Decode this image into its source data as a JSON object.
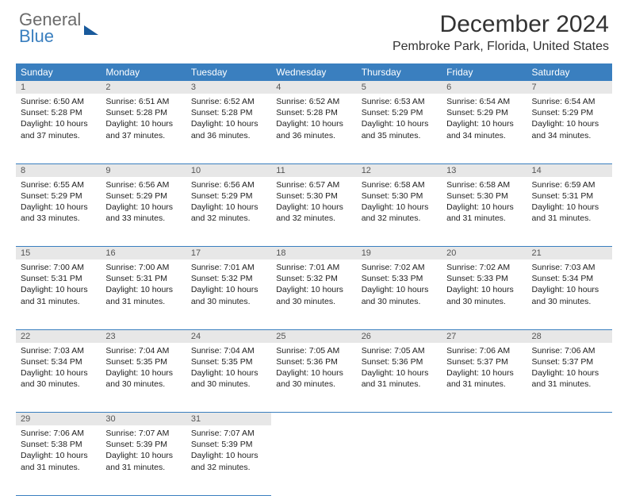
{
  "brand": {
    "line1": "General",
    "line2": "Blue"
  },
  "title": "December 2024",
  "location": "Pembroke Park, Florida, United States",
  "colors": {
    "header_bg": "#3a7fbf",
    "header_text": "#ffffff",
    "daynum_bg": "#e7e7e7",
    "cell_border": "#3a7fbf",
    "logo_gray": "#6b6b6b",
    "logo_blue": "#3a7fbf",
    "logo_mark": "#195a9c"
  },
  "weekdays": [
    "Sunday",
    "Monday",
    "Tuesday",
    "Wednesday",
    "Thursday",
    "Friday",
    "Saturday"
  ],
  "first_weekday_index": 0,
  "days": [
    {
      "n": 1,
      "sunrise": "6:50 AM",
      "sunset": "5:28 PM",
      "daylight": "10 hours and 37 minutes."
    },
    {
      "n": 2,
      "sunrise": "6:51 AM",
      "sunset": "5:28 PM",
      "daylight": "10 hours and 37 minutes."
    },
    {
      "n": 3,
      "sunrise": "6:52 AM",
      "sunset": "5:28 PM",
      "daylight": "10 hours and 36 minutes."
    },
    {
      "n": 4,
      "sunrise": "6:52 AM",
      "sunset": "5:28 PM",
      "daylight": "10 hours and 36 minutes."
    },
    {
      "n": 5,
      "sunrise": "6:53 AM",
      "sunset": "5:29 PM",
      "daylight": "10 hours and 35 minutes."
    },
    {
      "n": 6,
      "sunrise": "6:54 AM",
      "sunset": "5:29 PM",
      "daylight": "10 hours and 34 minutes."
    },
    {
      "n": 7,
      "sunrise": "6:54 AM",
      "sunset": "5:29 PM",
      "daylight": "10 hours and 34 minutes."
    },
    {
      "n": 8,
      "sunrise": "6:55 AM",
      "sunset": "5:29 PM",
      "daylight": "10 hours and 33 minutes."
    },
    {
      "n": 9,
      "sunrise": "6:56 AM",
      "sunset": "5:29 PM",
      "daylight": "10 hours and 33 minutes."
    },
    {
      "n": 10,
      "sunrise": "6:56 AM",
      "sunset": "5:29 PM",
      "daylight": "10 hours and 32 minutes."
    },
    {
      "n": 11,
      "sunrise": "6:57 AM",
      "sunset": "5:30 PM",
      "daylight": "10 hours and 32 minutes."
    },
    {
      "n": 12,
      "sunrise": "6:58 AM",
      "sunset": "5:30 PM",
      "daylight": "10 hours and 32 minutes."
    },
    {
      "n": 13,
      "sunrise": "6:58 AM",
      "sunset": "5:30 PM",
      "daylight": "10 hours and 31 minutes."
    },
    {
      "n": 14,
      "sunrise": "6:59 AM",
      "sunset": "5:31 PM",
      "daylight": "10 hours and 31 minutes."
    },
    {
      "n": 15,
      "sunrise": "7:00 AM",
      "sunset": "5:31 PM",
      "daylight": "10 hours and 31 minutes."
    },
    {
      "n": 16,
      "sunrise": "7:00 AM",
      "sunset": "5:31 PM",
      "daylight": "10 hours and 31 minutes."
    },
    {
      "n": 17,
      "sunrise": "7:01 AM",
      "sunset": "5:32 PM",
      "daylight": "10 hours and 30 minutes."
    },
    {
      "n": 18,
      "sunrise": "7:01 AM",
      "sunset": "5:32 PM",
      "daylight": "10 hours and 30 minutes."
    },
    {
      "n": 19,
      "sunrise": "7:02 AM",
      "sunset": "5:33 PM",
      "daylight": "10 hours and 30 minutes."
    },
    {
      "n": 20,
      "sunrise": "7:02 AM",
      "sunset": "5:33 PM",
      "daylight": "10 hours and 30 minutes."
    },
    {
      "n": 21,
      "sunrise": "7:03 AM",
      "sunset": "5:34 PM",
      "daylight": "10 hours and 30 minutes."
    },
    {
      "n": 22,
      "sunrise": "7:03 AM",
      "sunset": "5:34 PM",
      "daylight": "10 hours and 30 minutes."
    },
    {
      "n": 23,
      "sunrise": "7:04 AM",
      "sunset": "5:35 PM",
      "daylight": "10 hours and 30 minutes."
    },
    {
      "n": 24,
      "sunrise": "7:04 AM",
      "sunset": "5:35 PM",
      "daylight": "10 hours and 30 minutes."
    },
    {
      "n": 25,
      "sunrise": "7:05 AM",
      "sunset": "5:36 PM",
      "daylight": "10 hours and 30 minutes."
    },
    {
      "n": 26,
      "sunrise": "7:05 AM",
      "sunset": "5:36 PM",
      "daylight": "10 hours and 31 minutes."
    },
    {
      "n": 27,
      "sunrise": "7:06 AM",
      "sunset": "5:37 PM",
      "daylight": "10 hours and 31 minutes."
    },
    {
      "n": 28,
      "sunrise": "7:06 AM",
      "sunset": "5:37 PM",
      "daylight": "10 hours and 31 minutes."
    },
    {
      "n": 29,
      "sunrise": "7:06 AM",
      "sunset": "5:38 PM",
      "daylight": "10 hours and 31 minutes."
    },
    {
      "n": 30,
      "sunrise": "7:07 AM",
      "sunset": "5:39 PM",
      "daylight": "10 hours and 31 minutes."
    },
    {
      "n": 31,
      "sunrise": "7:07 AM",
      "sunset": "5:39 PM",
      "daylight": "10 hours and 32 minutes."
    }
  ],
  "labels": {
    "sunrise_prefix": "Sunrise: ",
    "sunset_prefix": "Sunset: ",
    "daylight_prefix": "Daylight: "
  }
}
